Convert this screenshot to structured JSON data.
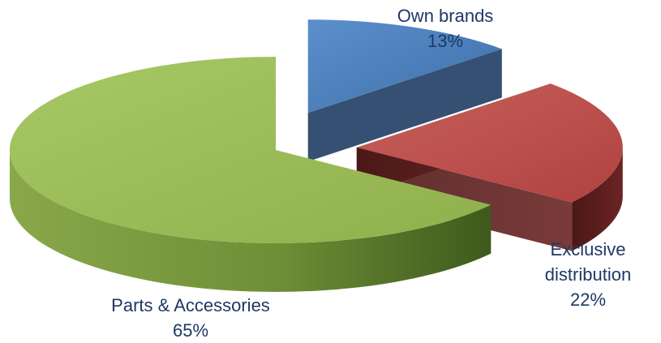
{
  "chart_data": {
    "type": "pie",
    "style": "3d-exploded",
    "slices": [
      {
        "label_lines": [
          "Own brands"
        ],
        "percent_text": "13%",
        "value": 13,
        "color": "#4f81bd",
        "side_color": "#1f3d63"
      },
      {
        "label_lines": [
          "Exclusive",
          "distribution"
        ],
        "percent_text": "22%",
        "value": 22,
        "color": "#c0504d",
        "side_color": "#5a1e1c"
      },
      {
        "label_lines": [
          "Parts & Accessories"
        ],
        "percent_text": "65%",
        "value": 65,
        "color": "#9bbb59",
        "side_color": "#6f8f37"
      }
    ]
  }
}
